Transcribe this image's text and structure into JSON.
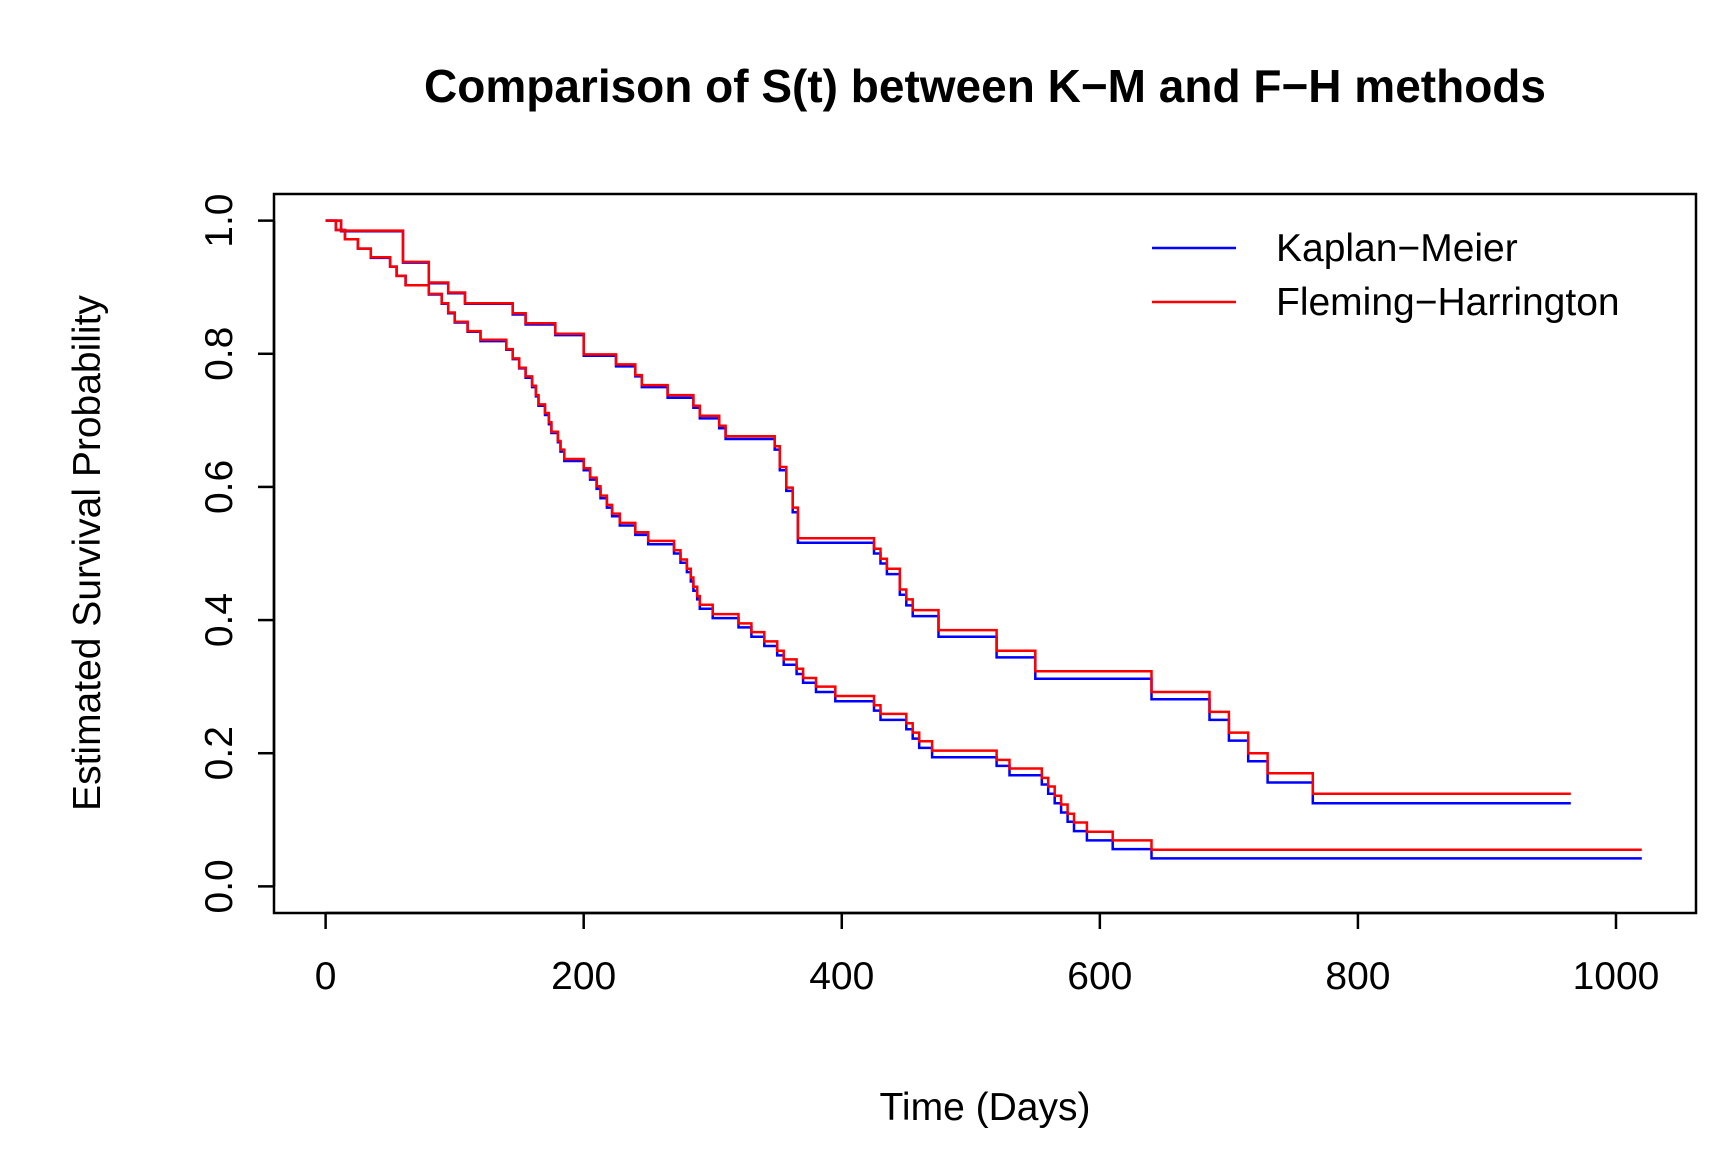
{
  "chart_data": {
    "type": "line",
    "step": true,
    "title": "Comparison of S(t) between K−M and F−H methods",
    "xlabel": "Time (Days)",
    "ylabel": "Estimated Survival Probability",
    "xlim": [
      -40,
      1062
    ],
    "ylim": [
      -0.04,
      1.04
    ],
    "xticks": [
      0,
      200,
      400,
      600,
      800,
      1000
    ],
    "xtick_labels": [
      "0",
      "200",
      "400",
      "600",
      "800",
      "1000"
    ],
    "yticks": [
      0.0,
      0.2,
      0.4,
      0.6,
      0.8,
      1.0
    ],
    "ytick_labels": [
      "0.0",
      "0.2",
      "0.4",
      "0.6",
      "0.8",
      "1.0"
    ],
    "legend": {
      "position": "top-right",
      "entries": [
        {
          "label": "Kaplan−Meier",
          "color": "#0000ff"
        },
        {
          "label": "Fleming−Harrington",
          "color": "#ff0000"
        }
      ]
    },
    "series": [
      {
        "group": "upper",
        "label": "Kaplan−Meier",
        "color": "#0000ff",
        "x": [
          0,
          12,
          60,
          80,
          95,
          108,
          145,
          155,
          178,
          200,
          225,
          240,
          245,
          265,
          285,
          290,
          305,
          310,
          348,
          352,
          357,
          362,
          366,
          425,
          430,
          435,
          445,
          450,
          455,
          475,
          520,
          550,
          640,
          685,
          700,
          715,
          730,
          765,
          965
        ],
        "y": [
          1.0,
          0.984,
          0.937,
          0.906,
          0.891,
          0.875,
          0.859,
          0.844,
          0.828,
          0.797,
          0.781,
          0.766,
          0.75,
          0.734,
          0.719,
          0.703,
          0.688,
          0.672,
          0.656,
          0.625,
          0.594,
          0.562,
          0.516,
          0.5,
          0.485,
          0.469,
          0.438,
          0.422,
          0.406,
          0.375,
          0.344,
          0.312,
          0.281,
          0.25,
          0.219,
          0.188,
          0.156,
          0.125,
          0.125
        ]
      },
      {
        "group": "upper",
        "label": "Fleming−Harrington",
        "color": "#ff0000",
        "x": [
          0,
          12,
          60,
          80,
          95,
          108,
          145,
          155,
          178,
          200,
          225,
          240,
          245,
          265,
          285,
          290,
          305,
          310,
          348,
          352,
          357,
          362,
          366,
          425,
          430,
          435,
          445,
          450,
          455,
          475,
          520,
          550,
          640,
          685,
          700,
          715,
          730,
          765,
          965
        ],
        "y": [
          1.0,
          0.985,
          0.938,
          0.907,
          0.892,
          0.876,
          0.861,
          0.846,
          0.83,
          0.799,
          0.784,
          0.768,
          0.753,
          0.738,
          0.722,
          0.707,
          0.692,
          0.676,
          0.661,
          0.63,
          0.599,
          0.569,
          0.523,
          0.507,
          0.492,
          0.477,
          0.446,
          0.431,
          0.415,
          0.385,
          0.354,
          0.323,
          0.292,
          0.262,
          0.231,
          0.2,
          0.17,
          0.139,
          0.139
        ]
      },
      {
        "group": "lower",
        "label": "Kaplan−Meier",
        "color": "#0000ff",
        "x": [
          0,
          8,
          15,
          25,
          35,
          50,
          55,
          62,
          80,
          90,
          95,
          100,
          110,
          120,
          140,
          145,
          150,
          155,
          160,
          163,
          165,
          170,
          173,
          175,
          180,
          182,
          185,
          200,
          205,
          210,
          213,
          218,
          222,
          228,
          240,
          250,
          270,
          275,
          280,
          283,
          285,
          288,
          290,
          300,
          320,
          330,
          340,
          350,
          355,
          365,
          370,
          380,
          395,
          425,
          430,
          450,
          455,
          460,
          470,
          520,
          530,
          555,
          560,
          565,
          570,
          575,
          580,
          590,
          610,
          640,
          650,
          660,
          690,
          700,
          715,
          790,
          812,
          1020
        ],
        "y": [
          1.0,
          0.986,
          0.972,
          0.958,
          0.944,
          0.931,
          0.917,
          0.903,
          0.889,
          0.875,
          0.861,
          0.847,
          0.833,
          0.819,
          0.806,
          0.792,
          0.778,
          0.764,
          0.75,
          0.736,
          0.722,
          0.708,
          0.694,
          0.681,
          0.667,
          0.653,
          0.639,
          0.625,
          0.611,
          0.597,
          0.583,
          0.569,
          0.556,
          0.542,
          0.528,
          0.514,
          0.5,
          0.486,
          0.472,
          0.458,
          0.444,
          0.431,
          0.417,
          0.403,
          0.389,
          0.375,
          0.361,
          0.347,
          0.333,
          0.319,
          0.306,
          0.292,
          0.278,
          0.264,
          0.25,
          0.236,
          0.222,
          0.208,
          0.194,
          0.181,
          0.167,
          0.153,
          0.139,
          0.125,
          0.111,
          0.097,
          0.083,
          0.069,
          0.056,
          0.042,
          0.042,
          0.042,
          0.042,
          0.042,
          0.042,
          0.042,
          0.042,
          0.042
        ]
      },
      {
        "group": "lower",
        "label": "Fleming−Harrington",
        "color": "#ff0000",
        "x": [
          0,
          8,
          15,
          25,
          35,
          50,
          55,
          62,
          80,
          90,
          95,
          100,
          110,
          120,
          140,
          145,
          150,
          155,
          160,
          163,
          165,
          170,
          173,
          175,
          180,
          182,
          185,
          200,
          205,
          210,
          213,
          218,
          222,
          228,
          240,
          250,
          270,
          275,
          280,
          283,
          285,
          288,
          290,
          300,
          320,
          330,
          340,
          350,
          355,
          365,
          370,
          380,
          395,
          425,
          430,
          450,
          455,
          460,
          470,
          520,
          530,
          555,
          560,
          565,
          570,
          575,
          580,
          590,
          610,
          640,
          650,
          660,
          690,
          700,
          715,
          790,
          812,
          1020
        ],
        "y": [
          1.0,
          0.986,
          0.972,
          0.958,
          0.945,
          0.931,
          0.917,
          0.903,
          0.89,
          0.876,
          0.862,
          0.848,
          0.834,
          0.821,
          0.807,
          0.793,
          0.779,
          0.766,
          0.752,
          0.738,
          0.724,
          0.711,
          0.697,
          0.683,
          0.669,
          0.656,
          0.642,
          0.628,
          0.614,
          0.601,
          0.587,
          0.573,
          0.56,
          0.546,
          0.532,
          0.519,
          0.505,
          0.491,
          0.477,
          0.464,
          0.45,
          0.436,
          0.423,
          0.409,
          0.395,
          0.382,
          0.368,
          0.354,
          0.341,
          0.327,
          0.313,
          0.3,
          0.286,
          0.272,
          0.259,
          0.245,
          0.231,
          0.218,
          0.204,
          0.19,
          0.177,
          0.163,
          0.15,
          0.136,
          0.123,
          0.109,
          0.096,
          0.082,
          0.069,
          0.055,
          0.055,
          0.055,
          0.055,
          0.055,
          0.055,
          0.055,
          0.055,
          0.055
        ]
      }
    ]
  }
}
